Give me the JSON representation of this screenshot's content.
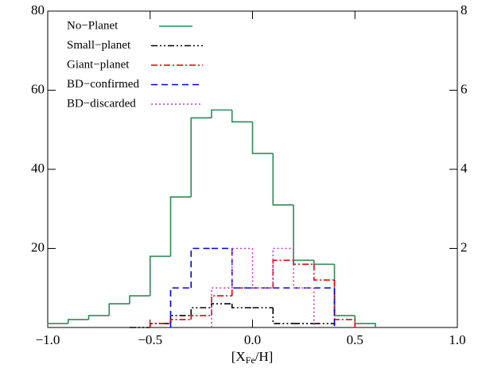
{
  "chart_data": {
    "type": "step-histogram",
    "xlabel_parts": [
      "[X",
      "Fe",
      "/H]"
    ],
    "xlim": [
      -1.0,
      1.0
    ],
    "xticks": [
      {
        "value": -1.0,
        "label": "−1.0"
      },
      {
        "value": -0.5,
        "label": "−0.5"
      },
      {
        "value": 0,
        "label": "0.0"
      },
      0.5,
      {
        "value": 1.0,
        "label": "1.0"
      }
    ],
    "ylim": [
      0,
      80
    ],
    "yticks": [
      20,
      40,
      60,
      80
    ],
    "y2lim": [
      0,
      8
    ],
    "y2ticks": [
      2,
      4,
      6,
      8
    ],
    "legend": "upper-left",
    "series": [
      {
        "name": "No−Planet",
        "color": "#2e8b57",
        "dash": "solid",
        "bins": [
          -1.0,
          -0.9,
          -0.8,
          -0.7,
          -0.6,
          -0.5,
          -0.4,
          -0.3,
          -0.2,
          -0.1,
          0.0,
          0.1,
          0.2,
          0.3,
          0.4,
          0.5,
          0.6
        ],
        "values": [
          1,
          2,
          3,
          6,
          8,
          18,
          33,
          53,
          55,
          52,
          44,
          31,
          17,
          16,
          3,
          1
        ]
      },
      {
        "name": "Small−planet",
        "color": "#000000",
        "dash": "dash-dot-dot",
        "bins": [
          -0.6,
          -0.5,
          -0.4,
          -0.3,
          -0.2,
          -0.1,
          0.0,
          0.1,
          0.2,
          0.3,
          0.4
        ],
        "values": [
          0,
          1,
          3,
          5,
          6,
          5,
          5,
          1,
          1,
          1
        ]
      },
      {
        "name": "Giant−planet",
        "color": "#e00000",
        "dash": "dash-dot",
        "bins": [
          -0.5,
          -0.4,
          -0.3,
          -0.2,
          -0.1,
          0.0,
          0.1,
          0.2,
          0.3,
          0.4,
          0.5
        ],
        "values": [
          1,
          2,
          3,
          8,
          10,
          10,
          17,
          16,
          12,
          2
        ]
      },
      {
        "name": "BD−confirmed",
        "color": "#0000e0",
        "dash": "dashed",
        "axis": "y2",
        "bins": [
          -0.4,
          -0.3,
          -0.2,
          -0.1,
          0.0,
          0.1,
          0.2,
          0.3,
          0.4
        ],
        "values": [
          1,
          2,
          2,
          1,
          1,
          1,
          1,
          1
        ]
      },
      {
        "name": "BD−discarded",
        "color": "#cc33cc",
        "dash": "dotted",
        "axis": "y2",
        "bins": [
          -0.2,
          -0.1,
          0.0,
          0.1,
          0.2,
          0.3
        ],
        "values": [
          1,
          2,
          1,
          2,
          1
        ]
      }
    ]
  }
}
